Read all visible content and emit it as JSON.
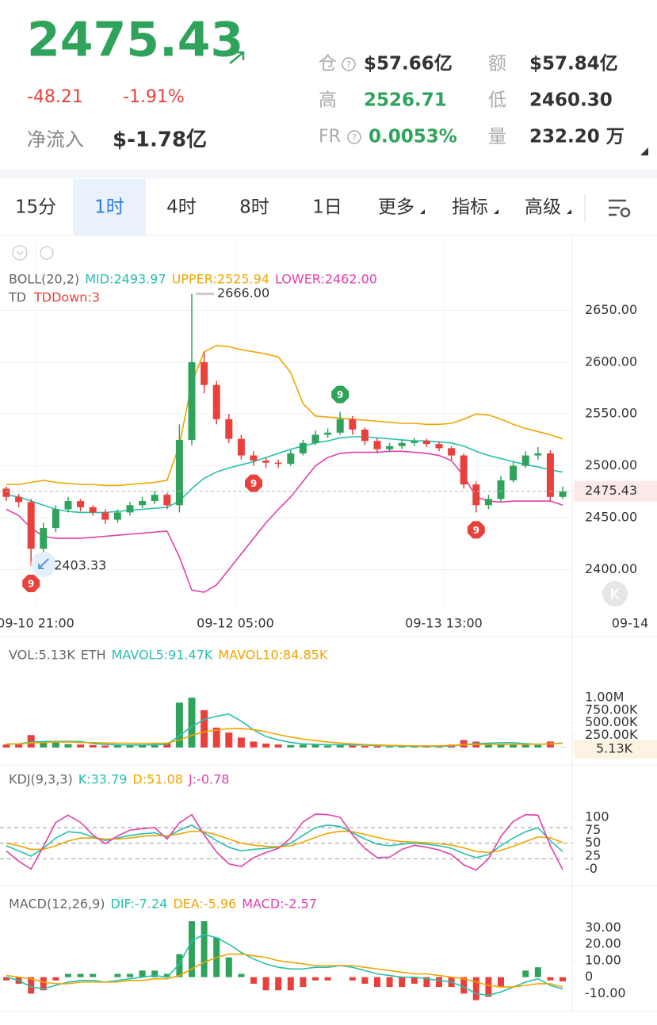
{
  "header": {
    "price": "2475.43",
    "change": "-48.21",
    "change_pct": "-1.91%",
    "net_inflow_label": "净流入",
    "net_inflow": "$-1.78亿",
    "stats": [
      {
        "label": "仓",
        "value": "$57.66亿"
      },
      {
        "label": "额",
        "value": "$57.84亿"
      },
      {
        "label": "高",
        "value": "2526.71"
      },
      {
        "label": "低",
        "value": "2460.30"
      },
      {
        "label": "FR",
        "value": "0.0053%"
      },
      {
        "label": "量",
        "value": "232.20 万"
      }
    ]
  },
  "tabs": [
    "15分",
    "1时",
    "4时",
    "8时",
    "1日",
    "更多",
    "指标",
    "高级"
  ],
  "chart_data": [
    {
      "type": "candlestick",
      "legend_title": [
        "BOLL(20,2)"
      ],
      "td_legend": [
        "TD",
        "TDDown:3"
      ],
      "open": [
        2478,
        2470,
        2465,
        2420,
        2440,
        2458,
        2466,
        2460,
        2455,
        2448,
        2455,
        2462,
        2466,
        2472,
        2462,
        2525,
        2600,
        2578,
        2545,
        2526,
        2510,
        2505,
        2503,
        2502,
        2512,
        2522,
        2530,
        2532,
        2545,
        2535,
        2524,
        2516,
        2519,
        2522,
        2524,
        2521,
        2517,
        2510,
        2482,
        2462,
        2468,
        2486,
        2500,
        2510,
        2512,
        2470
      ],
      "high": [
        2480,
        2473,
        2468,
        2445,
        2462,
        2470,
        2468,
        2462,
        2458,
        2458,
        2465,
        2470,
        2476,
        2474,
        2540,
        2666,
        2610,
        2582,
        2550,
        2530,
        2514,
        2508,
        2506,
        2515,
        2525,
        2534,
        2536,
        2552,
        2548,
        2537,
        2527,
        2522,
        2525,
        2527,
        2526,
        2523,
        2519,
        2512,
        2485,
        2472,
        2490,
        2504,
        2514,
        2518,
        2515,
        2480
      ],
      "low": [
        2466,
        2460,
        2403.33,
        2415,
        2436,
        2455,
        2456,
        2452,
        2444,
        2445,
        2452,
        2459,
        2463,
        2458,
        2455,
        2520,
        2570,
        2540,
        2522,
        2506,
        2500,
        2498,
        2498,
        2500,
        2510,
        2520,
        2527,
        2530,
        2530,
        2520,
        2512,
        2513,
        2516,
        2519,
        2518,
        2514,
        2505,
        2478,
        2455,
        2458,
        2465,
        2484,
        2498,
        2506,
        2465,
        2468
      ],
      "close": [
        2470,
        2465,
        2420,
        2440,
        2458,
        2466,
        2460,
        2455,
        2448,
        2455,
        2462,
        2466,
        2472,
        2462,
        2525,
        2600,
        2578,
        2545,
        2526,
        2510,
        2505,
        2503,
        2502,
        2512,
        2522,
        2530,
        2532,
        2545,
        2535,
        2524,
        2516,
        2519,
        2522,
        2524,
        2521,
        2517,
        2510,
        2482,
        2462,
        2468,
        2486,
        2500,
        2510,
        2512,
        2470,
        2475.43
      ],
      "up_color": "#2fa35b",
      "down_color": "#e8413c",
      "series": [
        {
          "name": "MID:2493.97",
          "color": "#26bfae",
          "values": [
            2472,
            2470,
            2466,
            2462,
            2458,
            2456,
            2455,
            2455,
            2455,
            2456,
            2457,
            2458,
            2459,
            2460,
            2466,
            2478,
            2488,
            2494,
            2498,
            2501,
            2504,
            2508,
            2512,
            2516,
            2519,
            2522,
            2524,
            2527,
            2528,
            2528,
            2527,
            2526,
            2525,
            2524,
            2524,
            2523,
            2522,
            2519,
            2514,
            2510,
            2507,
            2504,
            2501,
            2499,
            2496,
            2493.97
          ]
        },
        {
          "name": "UPPER:2525.94",
          "color": "#f0a500",
          "values": [
            2482,
            2482,
            2484,
            2486,
            2484,
            2483,
            2482,
            2482,
            2481,
            2481,
            2482,
            2483,
            2484,
            2486,
            2520,
            2580,
            2610,
            2616,
            2615,
            2612,
            2610,
            2608,
            2605,
            2590,
            2560,
            2548,
            2547,
            2546,
            2545,
            2544,
            2543,
            2542,
            2541,
            2541,
            2540,
            2540,
            2541,
            2545,
            2550,
            2549,
            2545,
            2540,
            2536,
            2533,
            2530,
            2525.94
          ]
        },
        {
          "name": "LOWER:2462.00",
          "color": "#e040a8",
          "values": [
            2458,
            2452,
            2440,
            2432,
            2430,
            2430,
            2430,
            2431,
            2432,
            2433,
            2434,
            2435,
            2436,
            2437,
            2412,
            2380,
            2378,
            2385,
            2400,
            2415,
            2430,
            2445,
            2458,
            2470,
            2485,
            2500,
            2508,
            2512,
            2513,
            2513,
            2513,
            2514,
            2514,
            2513,
            2512,
            2510,
            2505,
            2490,
            2470,
            2466,
            2465,
            2466,
            2466,
            2466,
            2466,
            2462
          ]
        }
      ],
      "annotations": [
        {
          "value": 2666,
          "label": "2666.00",
          "candle": 15
        },
        {
          "value": 2403.33,
          "label": "2403.33",
          "candle": 2
        }
      ],
      "td_marks": [
        {
          "label": "9",
          "candle": 2,
          "side": "below",
          "color": "#e8413c"
        },
        {
          "label": "9",
          "candle": 20,
          "side": "below",
          "color": "#e8413c"
        },
        {
          "label": "9",
          "candle": 27,
          "side": "above",
          "color": "#2fa35b"
        },
        {
          "label": "9",
          "candle": 38,
          "side": "below",
          "color": "#e8413c"
        }
      ],
      "ylim": [
        2362,
        2720
      ],
      "yticks": [
        {
          "value": 2400,
          "label": "2400.00"
        },
        {
          "value": 2450,
          "label": "2450.00"
        },
        {
          "value": 2500,
          "label": "2500.00"
        },
        {
          "value": 2550,
          "label": "2550.00"
        },
        {
          "value": 2600,
          "label": "2600.00"
        },
        {
          "value": 2650,
          "label": "2650.00"
        }
      ],
      "xlabels": [
        "09-10 21:00",
        "09-12 05:00",
        "09-13 13:00",
        "09-14"
      ],
      "grid": true
    },
    {
      "type": "volume",
      "legend_title": [
        "VOL:5.13K",
        "ETH"
      ],
      "last_label": "5.13K",
      "values": [
        60,
        80,
        250,
        120,
        100,
        70,
        60,
        50,
        40,
        45,
        60,
        55,
        70,
        90,
        900,
        1000,
        750,
        400,
        300,
        200,
        120,
        80,
        60,
        50,
        60,
        70,
        40,
        60,
        40,
        30,
        25,
        20,
        20,
        25,
        20,
        30,
        60,
        150,
        120,
        80,
        70,
        60,
        60,
        50,
        120,
        5.13
      ],
      "series": [
        {
          "name": "MAVOL5:91.47K",
          "color": "#26bfae",
          "values": [
            70,
            75,
            110,
            120,
            122,
            124,
            120,
            80,
            64,
            53,
            51,
            50,
            54,
            64,
            235,
            423,
            562,
            628,
            670,
            530,
            354,
            220,
            152,
            102,
            74,
            64,
            56,
            56,
            54,
            48,
            39,
            35,
            29,
            24,
            22,
            23,
            31,
            61,
            77,
            88,
            96,
            96,
            78,
            64,
            72,
            91.47
          ]
        },
        {
          "name": "MAVOL10:84.85K",
          "color": "#f0a500",
          "values": [
            70,
            72,
            90,
            100,
            110,
            112,
            100,
            100,
            93,
            88,
            87,
            85,
            87,
            89,
            149,
            245,
            316,
            350,
            380,
            382,
            359,
            316,
            260,
            210,
            170,
            140,
            110,
            90,
            75,
            60,
            50,
            42,
            38,
            33,
            32,
            35,
            45,
            56,
            60,
            64,
            63,
            65,
            66,
            68,
            73,
            84.85
          ]
        }
      ],
      "ylim": [
        0,
        1558
      ],
      "yticks": [
        {
          "value": 250,
          "label": "250.00K"
        },
        {
          "value": 500,
          "label": "500.00K"
        },
        {
          "value": 750,
          "label": "750.00K"
        },
        {
          "value": 1000,
          "label": "1.00M"
        }
      ]
    },
    {
      "type": "line",
      "legend_title": [
        "KDJ(9,3,3)"
      ],
      "series": [
        {
          "name": "K:33.79",
          "color": "#26bfae",
          "values": [
            45,
            35,
            25,
            40,
            60,
            72,
            70,
            62,
            55,
            60,
            65,
            68,
            70,
            62,
            75,
            85,
            70,
            55,
            42,
            35,
            38,
            40,
            42,
            50,
            65,
            80,
            85,
            82,
            70,
            58,
            48,
            45,
            48,
            50,
            48,
            45,
            40,
            30,
            22,
            28,
            45,
            60,
            72,
            80,
            55,
            33.79
          ]
        },
        {
          "name": "D:51.08",
          "color": "#f0a500",
          "values": [
            50,
            45,
            38,
            38,
            45,
            54,
            60,
            60,
            58,
            58,
            60,
            63,
            65,
            64,
            68,
            73,
            72,
            66,
            58,
            50,
            46,
            44,
            43,
            45,
            52,
            61,
            69,
            73,
            72,
            67,
            61,
            56,
            53,
            52,
            51,
            49,
            46,
            41,
            34,
            32,
            36,
            44,
            53,
            62,
            60,
            51.08
          ]
        },
        {
          "name": "J:-0.78",
          "color": "#e040a8",
          "values": [
            35,
            15,
            0,
            44,
            90,
            104,
            90,
            66,
            49,
            64,
            75,
            78,
            80,
            58,
            89,
            105,
            66,
            33,
            10,
            5,
            22,
            32,
            40,
            60,
            91,
            106,
            105,
            100,
            66,
            40,
            22,
            23,
            38,
            46,
            42,
            37,
            28,
            8,
            -2,
            20,
            63,
            92,
            105,
            104,
            45,
            -0.78
          ]
        }
      ],
      "guides": [
        80,
        50,
        20
      ],
      "ylim": [
        -21,
        132
      ],
      "yticks": [
        {
          "value": 0,
          "label": "-0"
        },
        25,
        50,
        75,
        100
      ]
    },
    {
      "type": "macd",
      "legend_title": [
        "MACD(12,26,9)"
      ],
      "series": [
        {
          "name": "DIF:-7.24",
          "color": "#26bfae",
          "values": [
            0,
            -2,
            -6,
            -7,
            -5,
            -3,
            -2,
            -2,
            -3,
            -2,
            -1,
            0,
            1,
            0,
            8,
            22,
            26,
            24,
            20,
            15,
            11,
            8,
            6,
            5,
            5,
            6,
            6,
            7,
            6,
            4,
            2,
            1,
            0,
            0,
            -1,
            -2,
            -3,
            -6,
            -10,
            -11,
            -9,
            -6,
            -3,
            -1,
            -5,
            -7.24
          ]
        },
        {
          "name": "DEA:-5.96",
          "color": "#f0a500",
          "values": [
            1,
            0,
            -1,
            -3,
            -4,
            -4,
            -3,
            -3,
            -3,
            -3,
            -2,
            -2,
            -1,
            -1,
            1,
            5,
            9,
            12,
            14,
            14,
            13,
            12,
            10,
            9,
            8,
            7,
            7,
            7,
            7,
            6,
            5,
            4,
            3,
            2,
            2,
            1,
            0,
            -1,
            -3,
            -5,
            -6,
            -6,
            -5,
            -4,
            -4,
            -5.96
          ]
        },
        {
          "name": "MACD:-2.57",
          "color": "#e040a8",
          "values": [
            -2,
            -4,
            -10,
            -8,
            -2,
            2,
            2,
            2,
            0,
            2,
            2,
            4,
            4,
            2,
            14,
            34,
            34,
            24,
            12,
            2,
            -4,
            -8,
            -8,
            -8,
            -6,
            -2,
            -2,
            0,
            -2,
            -4,
            -6,
            -6,
            -6,
            -4,
            -6,
            -6,
            -6,
            -10,
            -14,
            -12,
            -6,
            0,
            4,
            6,
            -2,
            -2.57
          ]
        }
      ],
      "ylim": [
        -18,
        35
      ],
      "yticks": [
        {
          "value": -10,
          "label": "-10.00"
        },
        0,
        {
          "value": 10,
          "label": "10.00"
        },
        {
          "value": 20,
          "label": "20.00"
        },
        {
          "value": 30,
          "label": "30.00"
        }
      ]
    }
  ]
}
